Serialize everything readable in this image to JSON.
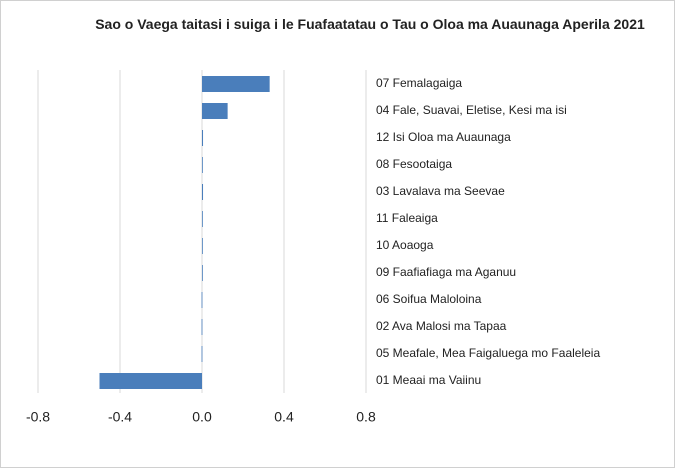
{
  "chart_data": {
    "type": "barh",
    "title": "Sao o Vaega taitasi i suiga i le Fuafaatatau o Tau o Oloa ma Auaunaga Aperila 2021",
    "categories": [
      "07 Femalagaiga",
      "04 Fale, Suavai, Eletise, Kesi ma isi",
      "12 Isi Oloa ma Auaunaga",
      "08 Fesootaiga",
      "03 Lavalava ma Seevae",
      "11 Faleaiga",
      "10 Aoaoga",
      "09 Faafiafiaga ma Aganuu",
      "06 Soifua Maloloina",
      "02 Ava Malosi ma Tapaa",
      "05 Meafale, Mea Faigaluega mo Faaleleia",
      "01 Meaai ma Vaiinu"
    ],
    "values": [
      0.33,
      0.125,
      0.005,
      0,
      0.005,
      0,
      0,
      0,
      -0.002,
      -0.002,
      -0.002,
      -0.5
    ],
    "color": "#4a7ebb",
    "xlim": [
      -0.8,
      0.8
    ],
    "xticks": [
      -0.8,
      -0.4,
      {
        "value": 0,
        "label": "0.0"
      },
      0.4,
      0.8
    ],
    "grid": true
  }
}
